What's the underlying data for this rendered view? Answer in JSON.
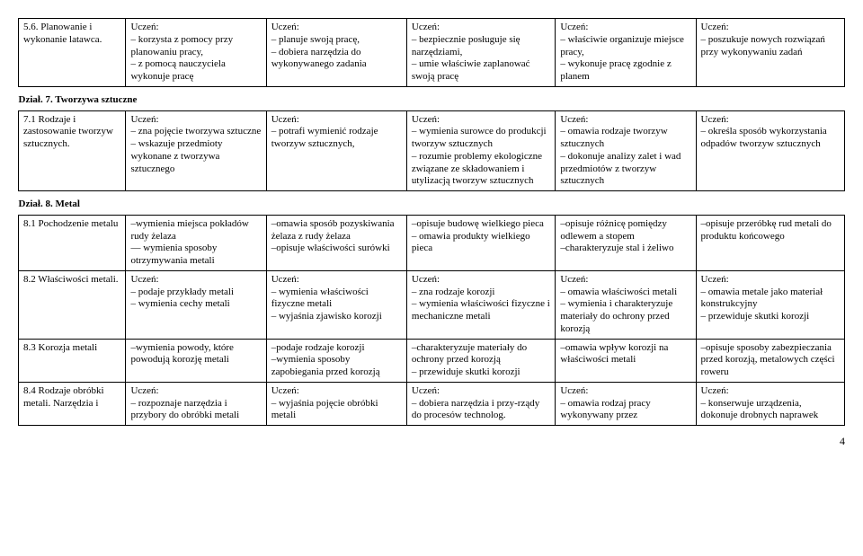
{
  "rows": [
    {
      "type": "data",
      "c1": "5.6. Planowanie i wykonanie latawca.",
      "c2": "Uczeń:\n– korzysta z pomocy przy planowaniu pracy,\n– z pomocą nauczyciela wykonuje pracę",
      "c3": "Uczeń:\n– planuje swoją pracę,\n– dobiera narzędzia do wykonywanego zadania",
      "c4": "Uczeń:\n– bezpiecznie posługuje się narzędziami,\n– umie właściwie zaplanować swoją pracę",
      "c5": "Uczeń:\n– właściwie organizuje miejsce pracy,\n– wykonuje pracę zgodnie z planem",
      "c6": "Uczeń:\n– poszukuje nowych rozwiązań przy wykonywaniu zadań"
    },
    {
      "type": "section",
      "label": "Dział. 7. Tworzywa sztuczne"
    },
    {
      "type": "data",
      "c1": "7.1 Rodzaje i zastosowanie tworzyw sztucznych.",
      "c2": "Uczeń:\n– zna pojęcie tworzywa sztuczne\n– wskazuje przedmioty wykonane z tworzywa sztucznego",
      "c3": "Uczeń:\n– potrafi wymienić rodzaje tworzyw sztucznych,",
      "c4": "Uczeń:\n– wymienia surowce do produkcji tworzyw sztucznych\n– rozumie problemy ekologiczne związane ze składowaniem i utylizacją tworzyw sztucznych",
      "c5": "Uczeń:\n– omawia rodzaje tworzyw sztucznych\n– dokonuje analizy zalet i wad przedmiotów z tworzyw sztucznych",
      "c6": "Uczeń:\n– określa sposób wykorzystania odpadów tworzyw sztucznych"
    },
    {
      "type": "section",
      "label": "Dział. 8. Metal"
    },
    {
      "type": "data",
      "c1": "8.1 Pochodzenie metalu",
      "c2": "–wymienia miejsca pokładów rudy żelaza\n— wymienia sposoby otrzymywania metali",
      "c3": "–omawia sposób pozyskiwania żelaza z rudy żelaza\n–opisuje właściwości surówki",
      "c4": "–opisuje budowę wielkiego pieca\n– omawia produkty wielkiego pieca",
      "c5": "–opisuje różnicę pomiędzy odlewem a stopem\n–charakteryzuje stal i żeliwo",
      "c6": "–opisuje przeróbkę rud metali do produktu końcowego"
    },
    {
      "type": "data",
      "c1": "8.2 Właściwości metali.",
      "c2": "Uczeń:\n– podaje przykłady metali\n– wymienia cechy metali",
      "c3": "Uczeń:\n– wymienia właściwości fizyczne metali\n– wyjaśnia zjawisko korozji",
      "c4": "Uczeń:\n– zna rodzaje korozji\n– wymienia właściwości fizyczne i mechaniczne metali",
      "c5": "Uczeń:\n– omawia właściwości metali\n– wymienia i charakteryzuje materiały do ochrony przed korozją",
      "c6": "Uczeń:\n– omawia metale jako materiał konstrukcyjny\n– przewiduje skutki korozji"
    },
    {
      "type": "data",
      "c1": "8.3 Korozja metali",
      "c2": "–wymienia powody, które powodują korozję metali",
      "c3": "–podaje rodzaje korozji\n–wymienia sposoby zapobiegania przed korozją",
      "c4": "–charakteryzuje materiały do ochrony przed korozją\n– przewiduje skutki korozji",
      "c5": "–omawia wpływ korozji na właściwości metali",
      "c6": "–opisuje sposoby zabezpieczania przed korozją, metalowych części roweru"
    },
    {
      "type": "data",
      "c1": "8.4 Rodzaje obróbki metali. Narzędzia i",
      "c2": "Uczeń:\n– rozpoznaje narzędzia i przybory do obróbki metali",
      "c3": "Uczeń:\n– wyjaśnia pojęcie obróbki metali",
      "c4": "Uczeń:\n– dobiera narzędzia i przy-rządy do procesów technolog.",
      "c5": "Uczeń:\n– omawia rodzaj pracy wykonywany przez",
      "c6": "Uczeń:\n– konserwuje urządzenia, dokonuje drobnych naprawek"
    }
  ],
  "page_number": "4"
}
